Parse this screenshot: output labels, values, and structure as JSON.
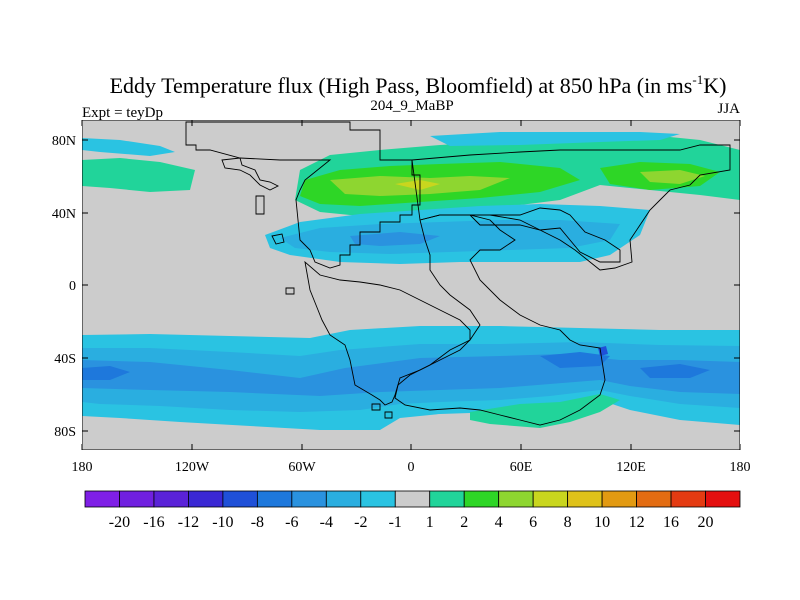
{
  "title": {
    "main": "Eddy Temperature flux (High Pass, Bloomfield) at 850 hPa (in ms",
    "sup": "-1",
    "end": "K)"
  },
  "left_label": "Expt = teyDp",
  "center_label": "204_9_MaBP",
  "right_label": "JJA",
  "lat_ticks": [
    "80N",
    "40N",
    "0",
    "40S",
    "80S"
  ],
  "lon_ticks": [
    "180",
    "120W",
    "60W",
    "0",
    "60E",
    "120E",
    "180"
  ],
  "colorbar": {
    "labels": [
      "-20",
      "-16",
      "-12",
      "-10",
      "-8",
      "-6",
      "-4",
      "-2",
      "-1",
      "1",
      "2",
      "4",
      "6",
      "8",
      "10",
      "12",
      "16",
      "20"
    ],
    "colors": [
      "#7f1fe6",
      "#7020e0",
      "#5a22d8",
      "#3a28d4",
      "#1f50d8",
      "#1e78dc",
      "#2a92df",
      "#2aaee0",
      "#2ac3e2",
      "#cccccc",
      "#21d49a",
      "#2ed626",
      "#8ed630",
      "#c9d61e",
      "#dfc21a",
      "#e29a12",
      "#e36c12",
      "#e43b12",
      "#e40f0f"
    ]
  },
  "palette": {
    "grey": "#cccccc",
    "lightblue": "#2ac3e2",
    "medblue": "#2aaee0",
    "blue": "#2a92df",
    "teal": "#21d49a",
    "green": "#2ed626",
    "yellowgreen": "#8ed630",
    "yellow": "#c9d61e"
  }
}
